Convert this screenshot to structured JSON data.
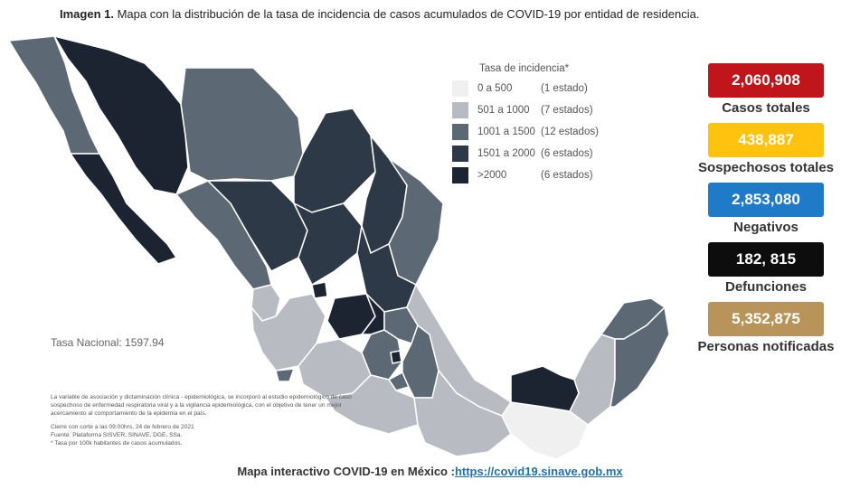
{
  "caption": {
    "prefix": "Imagen 1.",
    "text": "Mapa con la distribución de la tasa de incidencia de casos acumulados de COVID-19 por entidad de residencia."
  },
  "legend": {
    "title": "Tasa de incidencia*",
    "items": [
      {
        "range": "0 a  500",
        "count": "(1 estado)",
        "color": "#f0f0f0"
      },
      {
        "range": "501 a  1000",
        "count": "(7 estados)",
        "color": "#b8bcc2"
      },
      {
        "range": "1001 a  1500",
        "count": "(12 estados)",
        "color": "#5d6875"
      },
      {
        "range": "1501 a  2000",
        "count": "(6 estados)",
        "color": "#2e3947"
      },
      {
        "range": ">2000",
        "count": "(6 estados)",
        "color": "#1b2430"
      }
    ]
  },
  "national_rate": "Tasa Nacional: 1597.94",
  "footnotes": {
    "paragraph": "La variable de asociación y dictaminación clínica - epidemiológica, se incorporó al estudio epidemiológico de caso sospechoso de enfermedad respiratoria viral y a la vigilancia epidemiológica, con el objetivo de tener un mejor acercamiento al comportamiento de la epidemia en el país.",
    "cutoff": "Cierre con corte a las 09:00hrs, 24 de febrero de 2021",
    "source": "Fuente: Plataforma SISVER, SINAVE, DGE, SSa.",
    "note": "* Tasa por 100k habitantes de casos acumulados."
  },
  "stats": [
    {
      "value": "2,060,908",
      "label": "Casos totales",
      "color": "#c0161b"
    },
    {
      "value": "438,887",
      "label": "Sospechosos totales",
      "color": "#ffc20e"
    },
    {
      "value": "2,853,080",
      "label": "Negativos",
      "color": "#1f7ac7"
    },
    {
      "value": "182, 815",
      "label": "Defunciones",
      "color": "#0d0d0d"
    },
    {
      "value": "5,352,875",
      "label": "Personas notificadas",
      "color": "#b8945a"
    }
  ],
  "footer": {
    "text": "Mapa interactivo COVID-19 en México :",
    "link": "https://covid19.sinave.gob.mx"
  }
}
